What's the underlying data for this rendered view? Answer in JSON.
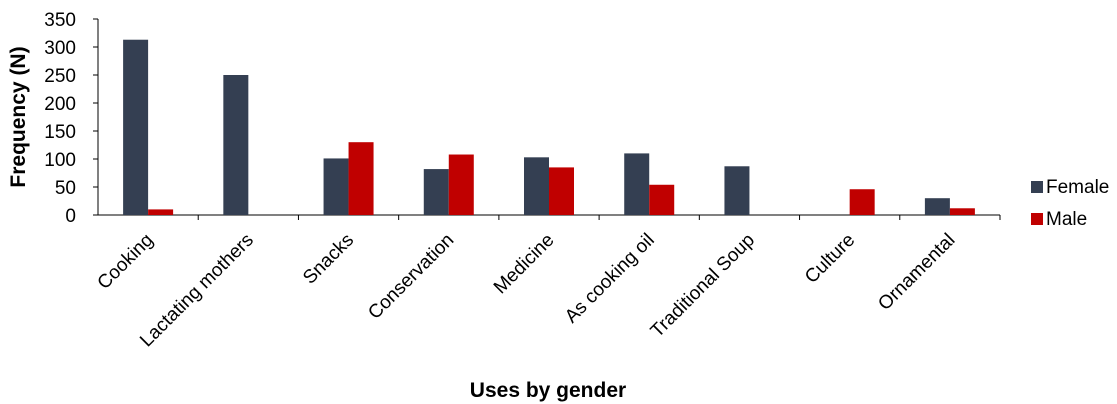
{
  "chart_data": {
    "type": "bar",
    "title": "",
    "xlabel": "Uses by gender",
    "ylabel": "Frequency (N)",
    "ylim": [
      0,
      350
    ],
    "yticks": [
      0,
      50,
      100,
      150,
      200,
      250,
      300,
      350
    ],
    "categories": [
      "Cooking",
      "Lactating mothers",
      "Snacks",
      "Conservation",
      "Medicine",
      "As cooking oil",
      "Traditional Soup",
      "Culture",
      "Ornamental"
    ],
    "series": [
      {
        "name": "Female",
        "color": "#343f52",
        "values": [
          313,
          250,
          101,
          82,
          103,
          110,
          87,
          0,
          30
        ]
      },
      {
        "name": "Male",
        "color": "#c00000",
        "values": [
          10,
          0,
          130,
          108,
          85,
          54,
          0,
          46,
          12
        ]
      }
    ],
    "legend": "right",
    "grid": false
  }
}
